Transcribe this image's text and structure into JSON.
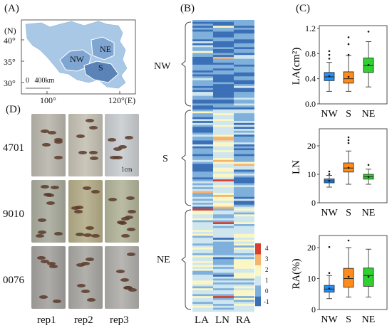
{
  "panels": {
    "a": "(A)",
    "b": "(B)",
    "c": "(C)",
    "d": "(D)"
  },
  "map": {
    "lat_unit": "(N)",
    "lat_ticks": [
      "40°",
      "35°",
      "30°"
    ],
    "lon_ticks": [
      "100°",
      "120°(E)"
    ],
    "scale_label": "0   400km",
    "regions": [
      "NW",
      "NE",
      "S"
    ],
    "colors": {
      "land": "#a9c8e6",
      "region_dark": "#5b83b8",
      "region_mid": "#7fa6d2"
    }
  },
  "heatmap": {
    "groups": [
      "NW",
      "S",
      "NE"
    ],
    "columns": [
      "LA",
      "LN",
      "RA"
    ],
    "colorbar_ticks": [
      "4",
      "3",
      "2",
      "1",
      "0",
      "-1"
    ],
    "colormap": [
      "#3b6fb6",
      "#7fb0dc",
      "#cfe6ef",
      "#fbf7c5",
      "#f6b36a",
      "#d7402f"
    ]
  },
  "boxplots": [
    {
      "ylabel": "LA(cm²)",
      "ylim": [
        0,
        1.2
      ],
      "yticks": [
        "1.2",
        "0.8",
        "0.4",
        "0.0"
      ],
      "categories": [
        "NW",
        "S",
        "NE"
      ],
      "colors": [
        "#1e90ff",
        "#ff8c1a",
        "#2fd02f"
      ],
      "stats": [
        {
          "min": 0.2,
          "q1": 0.37,
          "median": 0.43,
          "q3": 0.5,
          "max": 0.66,
          "mean": 0.44,
          "outliers": [
            0.72,
            0.78,
            0.84
          ]
        },
        {
          "min": 0.2,
          "q1": 0.33,
          "median": 0.4,
          "q3": 0.51,
          "max": 0.77,
          "mean": 0.43,
          "outliers": [
            0.78,
            0.95,
            1.06
          ]
        },
        {
          "min": 0.27,
          "q1": 0.5,
          "median": 0.61,
          "q3": 0.73,
          "max": 0.99,
          "mean": 0.62,
          "outliers": [
            1.15
          ]
        }
      ]
    },
    {
      "ylabel": "LN",
      "ylim": [
        0,
        25
      ],
      "yticks": [
        "20",
        "10",
        "0"
      ],
      "categories": [
        "NW",
        "S",
        "NE"
      ],
      "colors": [
        "#1e90ff",
        "#ff8c1a",
        "#2fd02f"
      ],
      "stats": [
        {
          "min": 5.5,
          "q1": 7,
          "median": 7.7,
          "q3": 8.4,
          "max": 9.6,
          "mean": 7.7,
          "outliers": [
            10.1,
            11.0
          ]
        },
        {
          "min": 6.5,
          "q1": 10.8,
          "median": 12.2,
          "q3": 14,
          "max": 18.2,
          "mean": 12.3,
          "outliers": [
            21.0,
            22.0,
            23.0
          ]
        },
        {
          "min": 6.5,
          "q1": 8.3,
          "median": 9.1,
          "q3": 10,
          "max": 11.8,
          "mean": 9.1,
          "outliers": [
            13.3
          ]
        }
      ]
    },
    {
      "ylabel": "RA(%)",
      "ylim": [
        0,
        23
      ],
      "yticks": [
        "20",
        "10",
        "0"
      ],
      "categories": [
        "NW",
        "S",
        "NE"
      ],
      "colors": [
        "#1e90ff",
        "#ff8c1a",
        "#2fd02f"
      ],
      "stats": [
        {
          "min": 3.5,
          "q1": 5.6,
          "median": 6.6,
          "q3": 7.8,
          "max": 11,
          "mean": 6.8,
          "outliers": [
            11.8,
            20.2
          ]
        },
        {
          "min": 4,
          "q1": 7.2,
          "median": 10,
          "q3": 13.3,
          "max": 20,
          "mean": 10.6,
          "outliers": [
            22.3
          ]
        },
        {
          "min": 4,
          "q1": 7.5,
          "median": 11,
          "q3": 13.4,
          "max": 19.5,
          "mean": 10.6,
          "outliers": []
        }
      ]
    }
  ],
  "photos": {
    "rows": [
      "4701",
      "9010",
      "0076"
    ],
    "cols": [
      "rep1",
      "rep2",
      "rep3"
    ],
    "scale": "1cm",
    "tints": [
      [
        "#b9b6ad",
        "#c4c0b3",
        "#c9cdd0"
      ],
      [
        "#a8ab9c",
        "#b4ad88",
        "#b3b49a"
      ],
      [
        "#a3a29f",
        "#a9a7a2",
        "#b0aeaa"
      ]
    ]
  }
}
